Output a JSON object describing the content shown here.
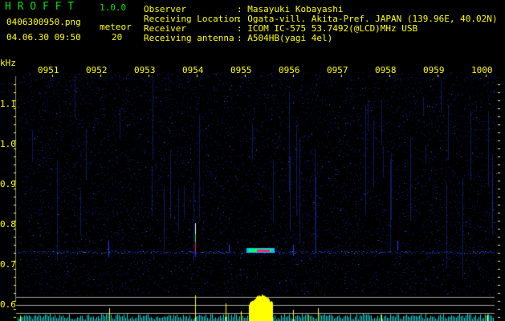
{
  "app": {
    "title": "H R O F F T",
    "version": "1.0.0"
  },
  "file": {
    "name": "0406300950.png",
    "datetime": "04.06.30 09:50"
  },
  "meteor": {
    "label": "meteor",
    "count": "20"
  },
  "info": [
    {
      "label": "Observer",
      "value": ": Masayuki Kobayashi"
    },
    {
      "label": "Receiving Location",
      "value": ": Ogata-vill. Akita-Pref. JAPAN (139.96E, 40.02N)"
    },
    {
      "label": "Receiver",
      "value": ": ICOM IC-575 53.7492(@LCD)MHz USB"
    },
    {
      "label": "Receiving antenna",
      "value": ": A504HB(yagi 4el)"
    }
  ],
  "axis": {
    "unit": "kHz",
    "freq_labels": [
      "1.1",
      "1.0",
      "0.9",
      "0.8",
      "0.7",
      "0.6"
    ],
    "time_labels": [
      "0951",
      "0952",
      "0953",
      "0954",
      "0955",
      "0956",
      "0957",
      "0958",
      "0959",
      "1000"
    ]
  },
  "colors": {
    "text": "#ffff00",
    "title": "#00e000",
    "background": "#000000",
    "noise": "#1020a0",
    "level_bar": "#00e0e0",
    "meteor_bar": "#ffff00"
  }
}
